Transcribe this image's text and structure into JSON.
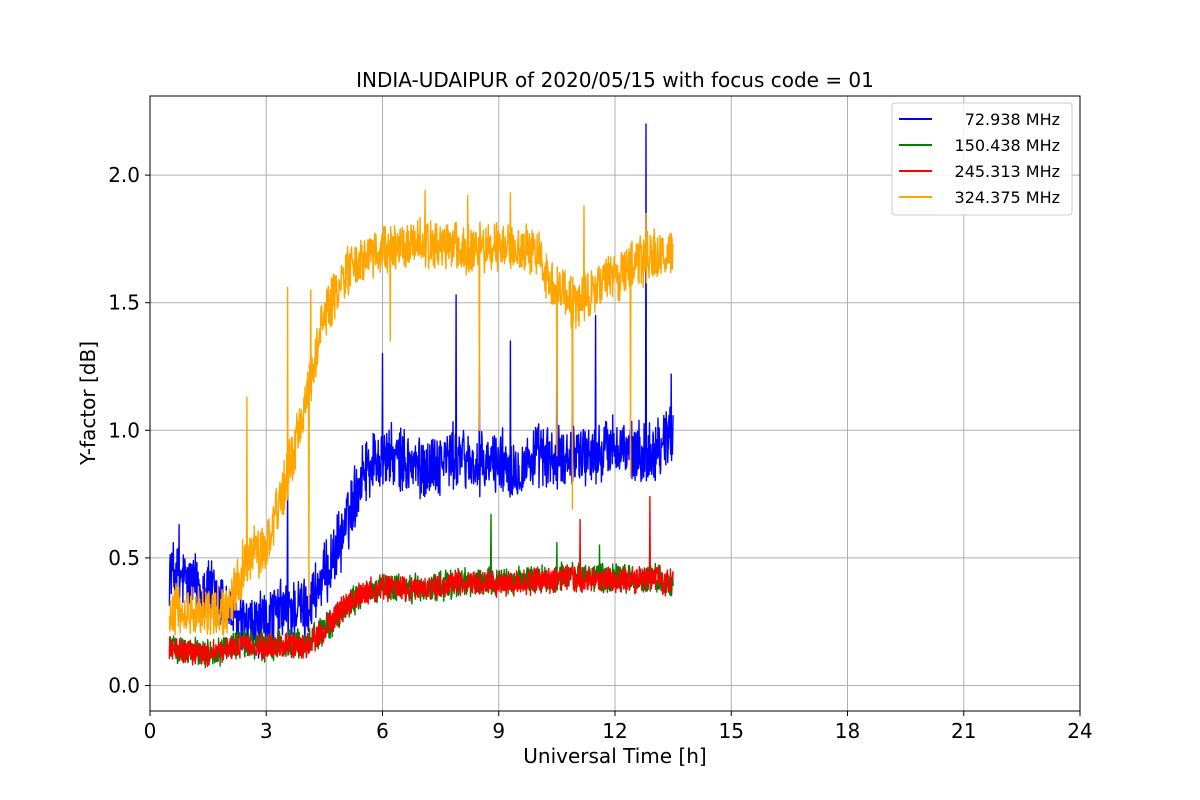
{
  "chart_data": {
    "type": "line",
    "title": "INDIA-UDAIPUR of 2020/05/15 with focus code = 01",
    "xlabel": "Universal Time [h]",
    "ylabel": "Y-factor [dB]",
    "xlim": [
      0,
      24
    ],
    "ylim": [
      -0.1,
      2.31
    ],
    "xticks": [
      0,
      3,
      6,
      9,
      12,
      15,
      18,
      21,
      24
    ],
    "xtick_labels": [
      "0",
      "3",
      "6",
      "9",
      "12",
      "15",
      "18",
      "21",
      "24"
    ],
    "yticks": [
      0.0,
      0.5,
      1.0,
      1.5,
      2.0
    ],
    "ytick_labels": [
      "0.0",
      "0.5",
      "1.0",
      "1.5",
      "2.0"
    ],
    "grid": true,
    "legend_position": "top-right",
    "x_range_data": [
      0.5,
      13.5
    ],
    "series": [
      {
        "name": "72.938 MHz",
        "color": "#0000ff",
        "noise": 0.11,
        "points": [
          [
            0.5,
            0.45
          ],
          [
            1.0,
            0.4
          ],
          [
            1.5,
            0.38
          ],
          [
            2.0,
            0.3
          ],
          [
            2.5,
            0.22
          ],
          [
            3.0,
            0.25
          ],
          [
            3.5,
            0.3
          ],
          [
            4.0,
            0.3
          ],
          [
            4.5,
            0.42
          ],
          [
            5.0,
            0.6
          ],
          [
            5.5,
            0.85
          ],
          [
            6.0,
            0.9
          ],
          [
            6.5,
            0.88
          ],
          [
            7.0,
            0.85
          ],
          [
            7.5,
            0.88
          ],
          [
            8.0,
            0.9
          ],
          [
            8.5,
            0.85
          ],
          [
            9.0,
            0.88
          ],
          [
            9.5,
            0.85
          ],
          [
            10.0,
            0.9
          ],
          [
            10.5,
            0.88
          ],
          [
            11.0,
            0.92
          ],
          [
            11.5,
            0.9
          ],
          [
            12.0,
            0.95
          ],
          [
            12.5,
            0.9
          ],
          [
            13.0,
            0.92
          ],
          [
            13.5,
            1.0
          ]
        ],
        "spikes": [
          [
            0.75,
            0.63
          ],
          [
            3.55,
            0.82
          ],
          [
            6.0,
            1.3
          ],
          [
            7.9,
            1.53
          ],
          [
            8.5,
            1.25
          ],
          [
            9.3,
            1.35
          ],
          [
            10.5,
            1.5
          ],
          [
            10.9,
            1.5
          ],
          [
            11.5,
            1.45
          ],
          [
            12.8,
            2.2
          ],
          [
            13.45,
            1.22
          ]
        ]
      },
      {
        "name": "150.438 MHz",
        "color": "#008000",
        "noise": 0.05,
        "points": [
          [
            0.5,
            0.15
          ],
          [
            1.0,
            0.14
          ],
          [
            1.5,
            0.12
          ],
          [
            2.0,
            0.15
          ],
          [
            2.5,
            0.16
          ],
          [
            3.0,
            0.15
          ],
          [
            3.5,
            0.16
          ],
          [
            4.0,
            0.16
          ],
          [
            4.5,
            0.22
          ],
          [
            5.0,
            0.3
          ],
          [
            5.5,
            0.36
          ],
          [
            6.0,
            0.38
          ],
          [
            7.0,
            0.38
          ],
          [
            8.0,
            0.4
          ],
          [
            9.0,
            0.41
          ],
          [
            10.0,
            0.42
          ],
          [
            11.0,
            0.43
          ],
          [
            12.0,
            0.42
          ],
          [
            13.0,
            0.42
          ],
          [
            13.5,
            0.4
          ]
        ],
        "spikes": [
          [
            8.8,
            0.67
          ],
          [
            10.5,
            0.56
          ],
          [
            11.6,
            0.55
          ],
          [
            12.9,
            0.58
          ]
        ]
      },
      {
        "name": "245.313 MHz",
        "color": "#ff0000",
        "noise": 0.045,
        "points": [
          [
            0.5,
            0.14
          ],
          [
            1.0,
            0.13
          ],
          [
            1.5,
            0.12
          ],
          [
            2.0,
            0.15
          ],
          [
            2.5,
            0.16
          ],
          [
            3.0,
            0.15
          ],
          [
            3.5,
            0.16
          ],
          [
            4.0,
            0.15
          ],
          [
            4.5,
            0.22
          ],
          [
            5.0,
            0.3
          ],
          [
            5.5,
            0.36
          ],
          [
            6.0,
            0.38
          ],
          [
            7.0,
            0.38
          ],
          [
            8.0,
            0.4
          ],
          [
            9.0,
            0.4
          ],
          [
            10.0,
            0.41
          ],
          [
            11.0,
            0.42
          ],
          [
            12.0,
            0.41
          ],
          [
            13.0,
            0.42
          ],
          [
            13.5,
            0.4
          ]
        ],
        "spikes": [
          [
            11.1,
            0.65
          ],
          [
            12.9,
            0.74
          ]
        ]
      },
      {
        "name": "324.375 MHz",
        "color": "#ffa500",
        "noise": 0.09,
        "points": [
          [
            0.5,
            0.3
          ],
          [
            1.0,
            0.3
          ],
          [
            1.5,
            0.28
          ],
          [
            2.0,
            0.3
          ],
          [
            2.5,
            0.5
          ],
          [
            3.0,
            0.55
          ],
          [
            3.5,
            0.8
          ],
          [
            4.0,
            1.1
          ],
          [
            4.5,
            1.45
          ],
          [
            5.0,
            1.6
          ],
          [
            5.5,
            1.68
          ],
          [
            6.0,
            1.7
          ],
          [
            6.5,
            1.72
          ],
          [
            7.0,
            1.73
          ],
          [
            7.5,
            1.73
          ],
          [
            8.0,
            1.72
          ],
          [
            8.5,
            1.72
          ],
          [
            9.0,
            1.73
          ],
          [
            9.5,
            1.72
          ],
          [
            10.0,
            1.68
          ],
          [
            10.5,
            1.55
          ],
          [
            11.0,
            1.5
          ],
          [
            11.5,
            1.55
          ],
          [
            12.0,
            1.6
          ],
          [
            12.5,
            1.65
          ],
          [
            13.0,
            1.68
          ],
          [
            13.5,
            1.7
          ]
        ],
        "spikes": [
          [
            2.5,
            1.13
          ],
          [
            3.55,
            1.56
          ],
          [
            4.15,
            1.55
          ],
          [
            7.1,
            1.94
          ],
          [
            8.2,
            1.92
          ],
          [
            9.3,
            1.93
          ],
          [
            11.2,
            1.88
          ],
          [
            12.8,
            1.85
          ]
        ],
        "dips": [
          [
            4.1,
            0.3
          ],
          [
            6.2,
            1.35
          ],
          [
            8.5,
            1.0
          ],
          [
            10.5,
            0.9
          ],
          [
            10.9,
            0.69
          ],
          [
            12.4,
            0.82
          ]
        ]
      }
    ]
  }
}
